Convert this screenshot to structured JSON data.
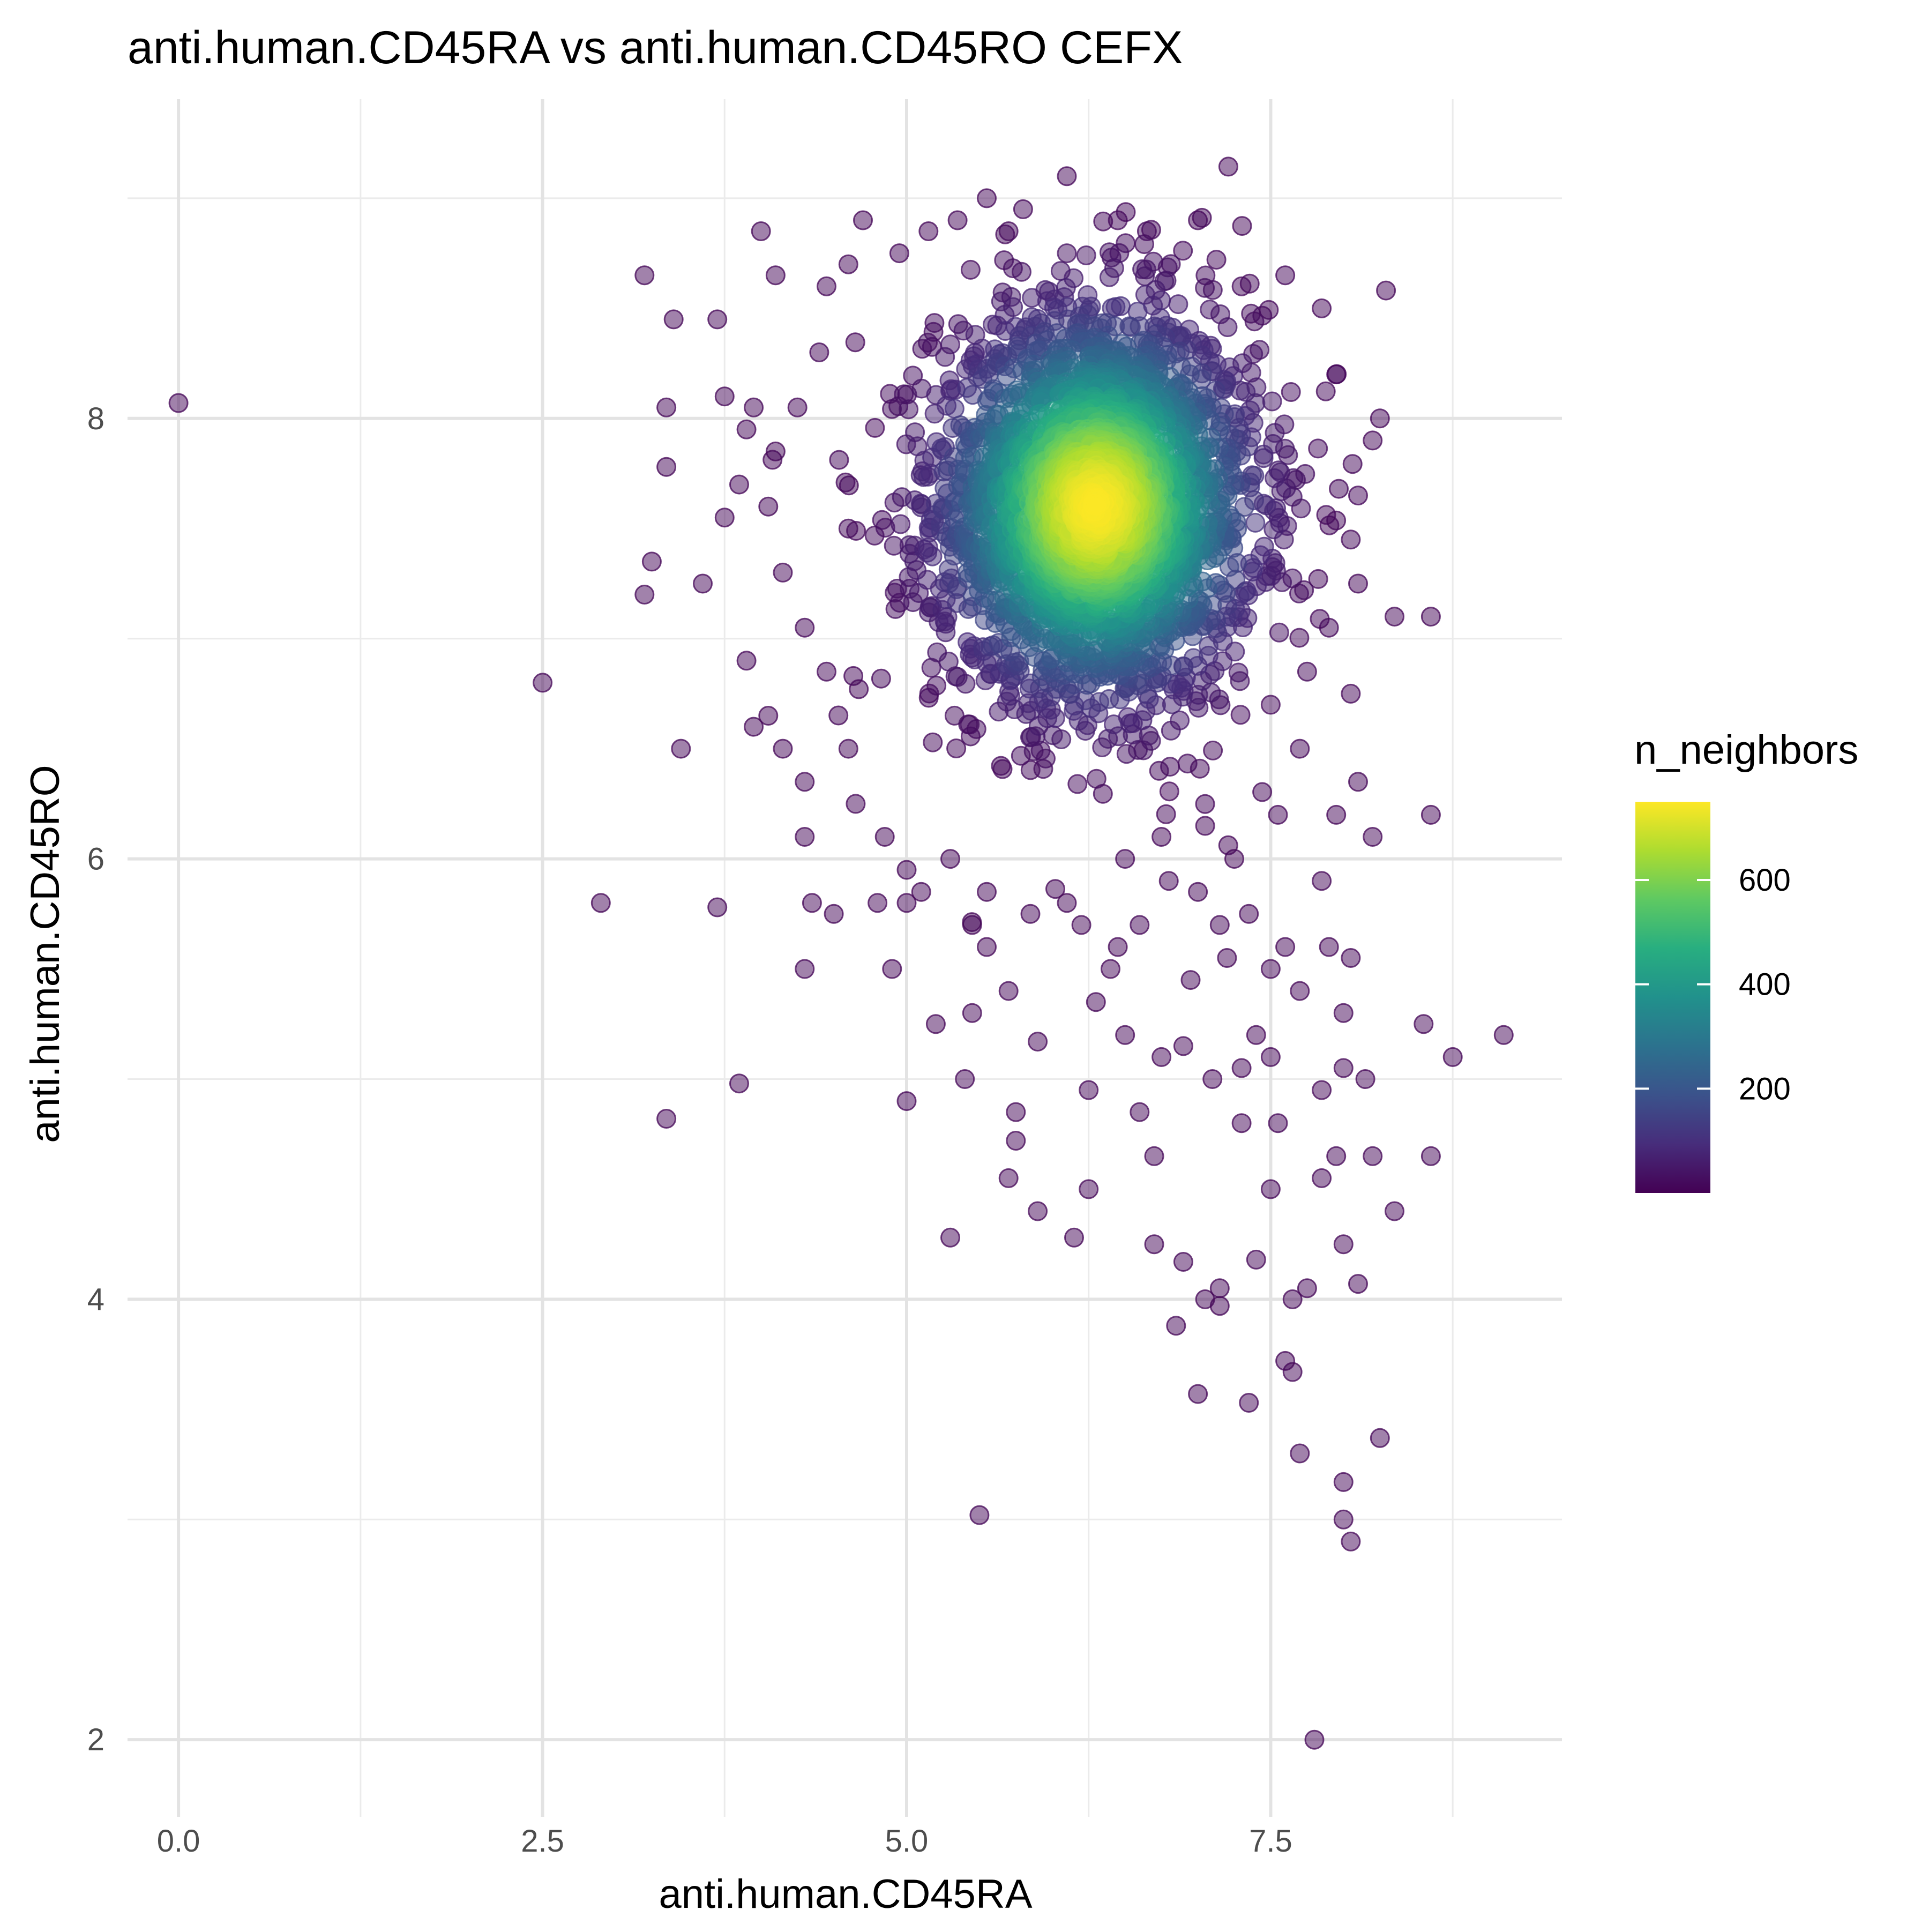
{
  "chart_data": {
    "type": "scatter",
    "title": "anti.human.CD45RA vs anti.human.CD45RO CEFX",
    "xlabel": "anti.human.CD45RA",
    "ylabel": "anti.human.CD45RO",
    "xlim": [
      -0.35,
      9.5
    ],
    "ylim": [
      1.65,
      9.45
    ],
    "x_ticks": [
      0.0,
      2.5,
      5.0,
      7.5
    ],
    "x_tick_labels": [
      "0.0",
      "2.5",
      "5.0",
      "7.5"
    ],
    "x_minor_ticks": [
      1.25,
      3.75,
      6.25,
      8.75
    ],
    "y_ticks": [
      2,
      4,
      6,
      8
    ],
    "y_tick_labels": [
      "2",
      "4",
      "6",
      "8"
    ],
    "y_minor_ticks": [
      3,
      5,
      7,
      9
    ],
    "grid": true,
    "color_by": "n_neighbors",
    "colorscale": "viridis",
    "color_range": [
      0,
      750
    ],
    "colorbar_ticks": [
      200,
      400,
      600
    ],
    "colorbar_tick_labels": [
      "200",
      "400",
      "600"
    ],
    "legend_position": "right",
    "point_alpha": 0.5,
    "dense_cluster": {
      "center": [
        6.3,
        7.6
      ],
      "spread": [
        0.55,
        0.45
      ],
      "peak_n_neighbors": 740
    },
    "outlier_points": [
      [
        0.0,
        8.07
      ],
      [
        2.5,
        6.8
      ],
      [
        2.9,
        5.8
      ],
      [
        3.2,
        8.65
      ],
      [
        3.2,
        7.2
      ],
      [
        3.25,
        7.35
      ],
      [
        3.35,
        4.82
      ],
      [
        3.4,
        8.45
      ],
      [
        3.35,
        7.78
      ],
      [
        3.35,
        8.05
      ],
      [
        3.45,
        6.5
      ],
      [
        3.6,
        7.25
      ],
      [
        3.7,
        5.78
      ],
      [
        3.85,
        4.98
      ],
      [
        3.9,
        6.9
      ],
      [
        3.7,
        8.45
      ],
      [
        3.75,
        8.1
      ],
      [
        3.95,
        6.6
      ],
      [
        4.0,
        8.85
      ],
      [
        4.1,
        8.65
      ],
      [
        4.3,
        5.5
      ],
      [
        4.3,
        6.1
      ],
      [
        4.35,
        5.8
      ],
      [
        4.5,
        5.75
      ],
      [
        4.9,
        5.5
      ],
      [
        5.2,
        5.25
      ],
      [
        5.3,
        4.28
      ],
      [
        5.4,
        5.0
      ],
      [
        5.45,
        5.3
      ],
      [
        5.5,
        3.02
      ],
      [
        5.55,
        9.0
      ],
      [
        5.8,
        8.95
      ],
      [
        5.75,
        4.85
      ],
      [
        5.75,
        4.72
      ],
      [
        5.9,
        5.17
      ],
      [
        5.9,
        4.4
      ],
      [
        5.7,
        4.55
      ],
      [
        6.1,
        9.1
      ],
      [
        6.15,
        4.28
      ],
      [
        6.25,
        4.5
      ],
      [
        6.25,
        4.95
      ],
      [
        6.6,
        4.85
      ],
      [
        6.7,
        4.25
      ],
      [
        6.7,
        4.65
      ],
      [
        6.85,
        3.88
      ],
      [
        6.9,
        4.17
      ],
      [
        7.0,
        3.57
      ],
      [
        7.05,
        4.0
      ],
      [
        7.15,
        3.97
      ],
      [
        7.15,
        4.05
      ],
      [
        7.35,
        3.53
      ],
      [
        7.4,
        4.18
      ],
      [
        7.5,
        4.5
      ],
      [
        7.6,
        3.72
      ],
      [
        7.65,
        3.67
      ],
      [
        7.7,
        3.3
      ],
      [
        7.8,
        2.0
      ],
      [
        7.65,
        4.0
      ],
      [
        7.75,
        4.05
      ],
      [
        7.85,
        4.55
      ],
      [
        8.0,
        3.17
      ],
      [
        8.0,
        3.0
      ],
      [
        8.05,
        2.9
      ],
      [
        8.25,
        3.37
      ],
      [
        8.0,
        4.25
      ],
      [
        8.1,
        4.07
      ],
      [
        8.2,
        4.65
      ],
      [
        8.35,
        4.4
      ],
      [
        8.55,
        5.25
      ],
      [
        8.6,
        4.65
      ],
      [
        8.75,
        5.1
      ],
      [
        9.1,
        5.2
      ],
      [
        8.6,
        6.2
      ],
      [
        8.35,
        7.1
      ],
      [
        8.6,
        7.1
      ],
      [
        8.2,
        6.1
      ],
      [
        8.0,
        5.05
      ],
      [
        8.15,
        5.0
      ],
      [
        7.95,
        4.65
      ],
      [
        7.85,
        4.95
      ],
      [
        6.0,
        8.0
      ],
      [
        5.0,
        4.9
      ],
      [
        5.7,
        5.4
      ],
      [
        6.1,
        5.8
      ],
      [
        6.4,
        5.5
      ],
      [
        6.6,
        5.7
      ],
      [
        6.8,
        5.9
      ],
      [
        7.0,
        5.85
      ],
      [
        7.2,
        5.55
      ],
      [
        7.4,
        5.2
      ],
      [
        7.1,
        5.0
      ],
      [
        7.3,
        5.05
      ],
      [
        7.5,
        5.1
      ],
      [
        7.55,
        4.8
      ],
      [
        7.7,
        5.4
      ],
      [
        7.9,
        5.6
      ],
      [
        8.0,
        5.3
      ],
      [
        8.05,
        5.55
      ],
      [
        7.6,
        5.6
      ],
      [
        7.3,
        4.8
      ],
      [
        6.9,
        5.15
      ],
      [
        6.75,
        5.1
      ],
      [
        6.5,
        5.2
      ],
      [
        6.3,
        5.35
      ],
      [
        6.45,
        5.6
      ],
      [
        6.95,
        5.45
      ],
      [
        7.15,
        5.7
      ],
      [
        7.35,
        5.75
      ],
      [
        7.5,
        5.5
      ],
      [
        7.85,
        5.9
      ],
      [
        7.95,
        6.2
      ],
      [
        8.1,
        6.35
      ],
      [
        8.05,
        6.75
      ],
      [
        7.9,
        7.05
      ],
      [
        8.1,
        7.25
      ],
      [
        8.05,
        7.45
      ],
      [
        8.1,
        7.65
      ],
      [
        8.2,
        7.9
      ],
      [
        8.25,
        8.0
      ],
      [
        7.95,
        8.2
      ],
      [
        7.85,
        8.5
      ],
      [
        7.6,
        8.65
      ],
      [
        7.3,
        8.6
      ],
      [
        7.0,
        8.9
      ],
      [
        6.65,
        8.85
      ],
      [
        6.45,
        8.9
      ],
      [
        6.1,
        8.75
      ],
      [
        5.7,
        8.85
      ],
      [
        5.35,
        8.9
      ],
      [
        5.15,
        8.85
      ],
      [
        4.95,
        8.75
      ],
      [
        4.7,
        8.9
      ],
      [
        4.6,
        8.7
      ],
      [
        4.45,
        8.6
      ],
      [
        4.4,
        8.3
      ],
      [
        4.25,
        8.05
      ],
      [
        4.1,
        7.85
      ],
      [
        4.05,
        7.6
      ],
      [
        3.9,
        7.95
      ],
      [
        3.95,
        8.05
      ],
      [
        4.15,
        7.3
      ],
      [
        4.3,
        7.05
      ],
      [
        4.45,
        6.85
      ],
      [
        4.6,
        6.5
      ],
      [
        4.3,
        6.35
      ],
      [
        4.15,
        6.5
      ],
      [
        4.05,
        6.65
      ],
      [
        4.65,
        6.25
      ],
      [
        4.85,
        6.1
      ],
      [
        5.0,
        5.95
      ],
      [
        5.1,
        5.85
      ],
      [
        5.3,
        6.0
      ],
      [
        5.55,
        5.85
      ],
      [
        5.45,
        5.7
      ],
      [
        5.55,
        5.6
      ],
      [
        5.85,
        5.75
      ],
      [
        6.2,
        5.7
      ],
      [
        6.5,
        6.0
      ],
      [
        6.75,
        6.1
      ],
      [
        7.05,
        6.15
      ],
      [
        7.25,
        6.0
      ],
      [
        7.55,
        6.2
      ],
      [
        7.7,
        6.5
      ],
      [
        7.5,
        6.7
      ],
      [
        7.75,
        6.85
      ],
      [
        4.8,
        5.8
      ],
      [
        5.0,
        5.8
      ],
      [
        3.75,
        7.55
      ],
      [
        3.85,
        7.7
      ],
      [
        4.6,
        7.5
      ]
    ]
  }
}
